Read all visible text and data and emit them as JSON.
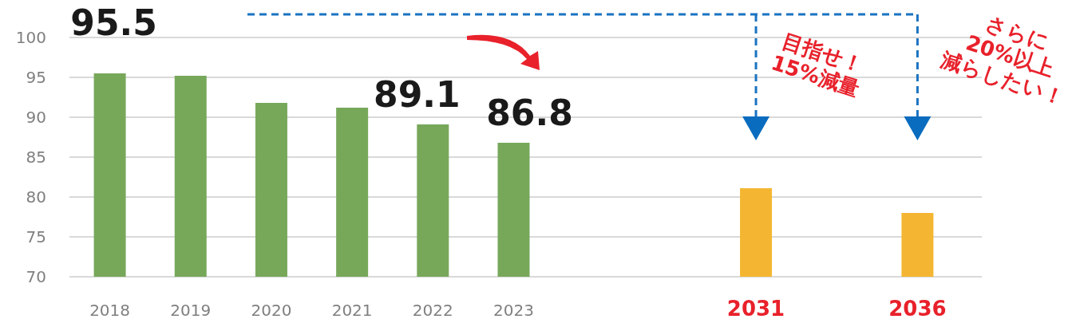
{
  "chart_data": {
    "type": "bar",
    "categories": [
      "2018",
      "2019",
      "2020",
      "2021",
      "2022",
      "2023",
      null,
      null,
      "2031",
      null,
      "2036"
    ],
    "values": [
      95.5,
      95.2,
      91.8,
      91.2,
      89.1,
      86.8,
      null,
      null,
      81.1,
      null,
      78.0
    ],
    "colors": [
      "#77a85a",
      "#77a85a",
      "#77a85a",
      "#77a85a",
      "#77a85a",
      "#77a85a",
      null,
      null,
      "#f4b632",
      null,
      "#f4b632"
    ],
    "value_labels": [
      "95.5",
      null,
      null,
      null,
      "89.1",
      "86.8",
      null,
      null,
      null,
      null,
      null
    ],
    "ylim": [
      70,
      100
    ],
    "yticks": [
      70,
      75,
      80,
      85,
      90,
      95,
      100
    ],
    "grid": "y",
    "annotations": [
      "目指せ！\n15%減量",
      "さらに\n20%以上\n減らしたい！"
    ]
  }
}
